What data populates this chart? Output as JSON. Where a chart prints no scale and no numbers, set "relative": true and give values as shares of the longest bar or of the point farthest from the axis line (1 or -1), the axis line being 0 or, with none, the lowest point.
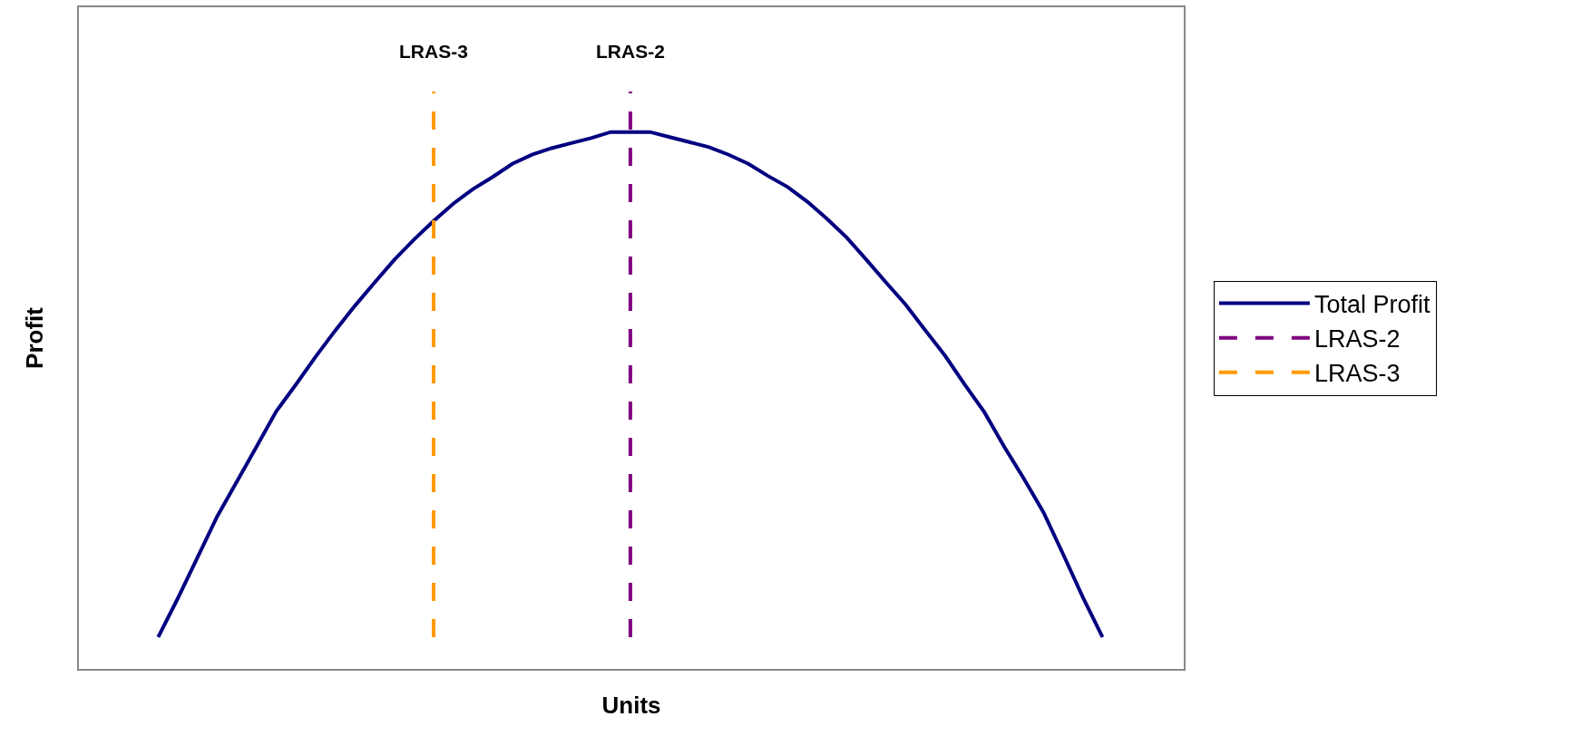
{
  "chart_data": {
    "type": "line",
    "xlabel": "Units",
    "ylabel": "Profit",
    "relative": true,
    "categories": [
      null,
      null,
      null,
      null,
      null,
      null,
      null,
      null,
      null,
      null,
      null,
      null,
      null,
      null,
      null,
      null,
      null,
      null,
      null,
      null,
      null,
      null,
      null,
      null,
      null,
      null,
      null,
      null,
      null,
      null,
      null,
      null,
      null,
      null,
      null,
      null,
      null,
      null,
      null,
      null,
      null,
      null,
      null,
      null,
      null,
      null,
      null,
      null,
      null
    ],
    "series": [
      {
        "name": "Total Profit",
        "color": "#000080",
        "values": [
          0,
          0.077,
          0.158,
          0.239,
          0.308,
          0.377,
          0.447,
          0.5,
          0.555,
          0.607,
          0.656,
          0.702,
          0.747,
          0.787,
          0.824,
          0.858,
          0.887,
          0.911,
          0.937,
          0.955,
          0.968,
          0.978,
          0.988,
          1,
          1,
          1,
          0.99,
          0.98,
          0.97,
          0.955,
          0.937,
          0.913,
          0.891,
          0.862,
          0.828,
          0.791,
          0.747,
          0.702,
          0.658,
          0.607,
          0.557,
          0.5,
          0.445,
          0.377,
          0.314,
          0.247,
          0.164,
          0.079,
          0
        ]
      }
    ],
    "ref_lines": [
      {
        "axis": "x",
        "label": "LRAS-2",
        "color": "#800080",
        "line_style": "dashed"
      },
      {
        "axis": "x",
        "label": "LRAS-3",
        "color": "#ff9900",
        "line_style": "dashed"
      }
    ],
    "legend": "right",
    "marker": "none",
    "line_style": "solid"
  }
}
